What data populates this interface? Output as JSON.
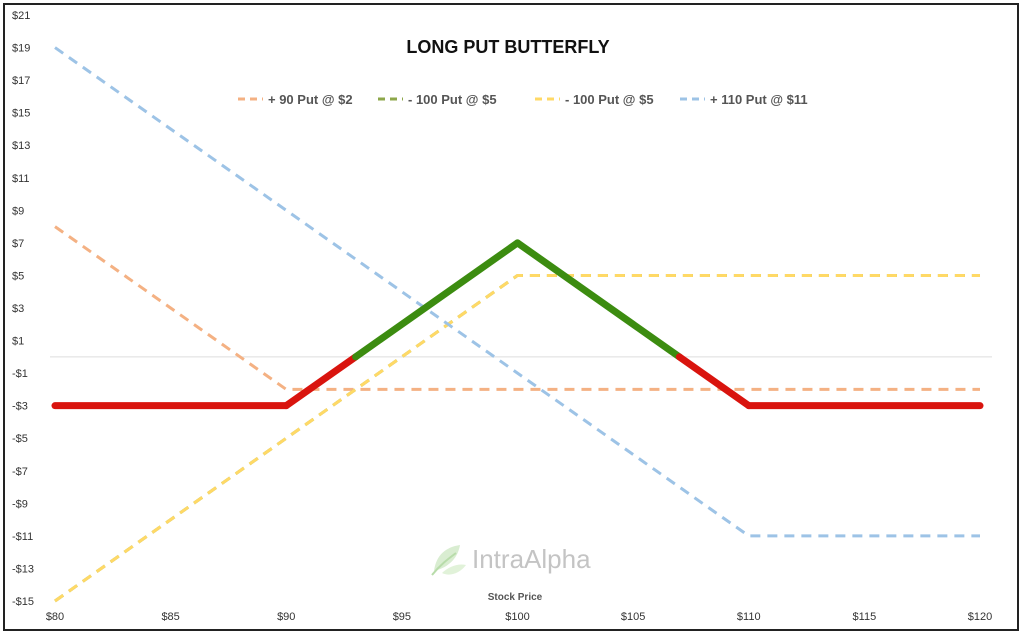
{
  "chart_data": {
    "type": "line",
    "title": "LONG PUT BUTTERFLY",
    "xlabel": "Stock Price",
    "ylabel": "",
    "xlim": [
      80,
      120
    ],
    "ylim": [
      -15,
      21
    ],
    "x_ticks": [
      80,
      85,
      90,
      95,
      100,
      105,
      110,
      115,
      120
    ],
    "x_tick_labels": [
      "$80",
      "$85",
      "$90",
      "$95",
      "$100",
      "$105",
      "$110",
      "$115",
      "$120"
    ],
    "y_ticks": [
      -15,
      -13,
      -11,
      -9,
      -7,
      -5,
      -3,
      -1,
      1,
      3,
      5,
      7,
      9,
      11,
      13,
      15,
      17,
      19,
      21
    ],
    "y_tick_labels": [
      "-$15",
      "-$13",
      "-$11",
      "-$9",
      "-$7",
      "-$5",
      "-$3",
      "-$1",
      "$1",
      "$3",
      "$5",
      "$7",
      "$9",
      "$11",
      "$13",
      "$15",
      "$17",
      "$19",
      "$21"
    ],
    "legend_position": "top-center",
    "series": [
      {
        "name": "+ 90 Put @ $2",
        "color": "#F4B183",
        "style": "dashed",
        "x": [
          80,
          90,
          120
        ],
        "y": [
          8,
          -2,
          -2
        ]
      },
      {
        "name": "- 100 Put @ $5",
        "color": "#8DA74A",
        "style": "dashed",
        "x": [
          80,
          100,
          120
        ],
        "y": [
          -15,
          5,
          5
        ]
      },
      {
        "name": "- 100 Put @ $5",
        "color": "#FFD966",
        "style": "dashed",
        "x": [
          80,
          100,
          120
        ],
        "y": [
          -15,
          5,
          5
        ]
      },
      {
        "name": "+ 110 Put @ $11",
        "color": "#9DC3E6",
        "style": "dashed",
        "x": [
          80,
          110,
          120
        ],
        "y": [
          19,
          -11,
          -11
        ]
      }
    ],
    "payoff": {
      "x": [
        80,
        90,
        100,
        110,
        120
      ],
      "y": [
        -3,
        -3,
        7,
        -3,
        -3
      ],
      "loss_color": "#D9140E",
      "profit_color": "#3C8C10"
    },
    "zero_line": 0
  },
  "watermark": {
    "text": "IntraAlpha",
    "icon": "leaf-logo-icon"
  }
}
